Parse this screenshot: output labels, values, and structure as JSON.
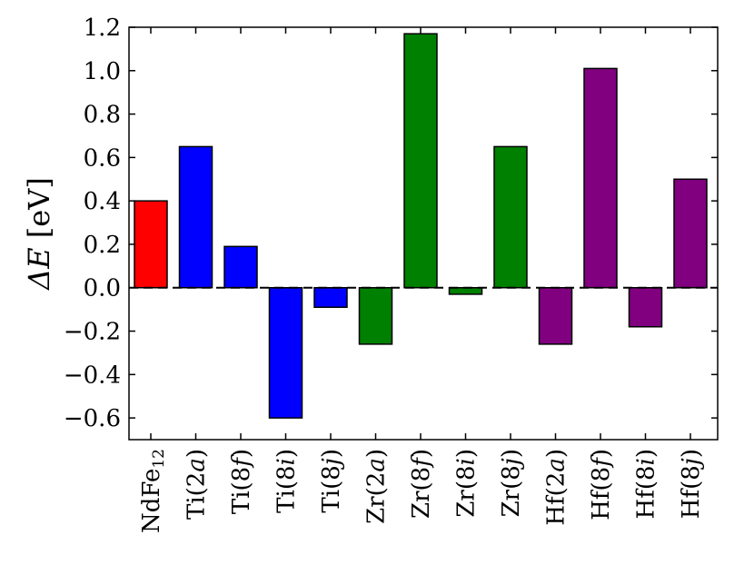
{
  "chart_data": {
    "type": "bar",
    "title": "",
    "xlabel": "",
    "ylabel": "ΔE [eV]",
    "ylabel_symbol": "ΔE",
    "ylabel_unit": "[eV]",
    "ylim": [
      -0.7,
      1.2
    ],
    "yticks": [
      "1.2",
      "1.0",
      "0.8",
      "0.6",
      "0.4",
      "0.2",
      "0.0",
      "-0.2",
      "-0.4",
      "-0.6"
    ],
    "ytick_values": [
      1.2,
      1.0,
      0.8,
      0.6,
      0.4,
      0.2,
      0.0,
      -0.2,
      -0.4,
      -0.6
    ],
    "grid": false,
    "zero_line": "dashed",
    "categories": [
      {
        "main": "NdFe",
        "sub": "12",
        "paren": "",
        "italic": ""
      },
      {
        "main": "Ti(",
        "italic": "a",
        "num": "2",
        "close": ")"
      },
      {
        "main": "Ti(",
        "italic": "f",
        "num": "8",
        "close": ")"
      },
      {
        "main": "Ti(",
        "italic": "i",
        "num": "8",
        "close": ")"
      },
      {
        "main": "Ti(",
        "italic": "j",
        "num": "8",
        "close": ")"
      },
      {
        "main": "Zr(",
        "italic": "a",
        "num": "2",
        "close": ")"
      },
      {
        "main": "Zr(",
        "italic": "f",
        "num": "8",
        "close": ")"
      },
      {
        "main": "Zr(",
        "italic": "i",
        "num": "8",
        "close": ")"
      },
      {
        "main": "Zr(",
        "italic": "j",
        "num": "8",
        "close": ")"
      },
      {
        "main": "Hf(",
        "italic": "a",
        "num": "2",
        "close": ")"
      },
      {
        "main": "Hf(",
        "italic": "f",
        "num": "8",
        "close": ")"
      },
      {
        "main": "Hf(",
        "italic": "i",
        "num": "8",
        "close": ")"
      },
      {
        "main": "Hf(",
        "italic": "j",
        "num": "8",
        "close": ")"
      }
    ],
    "values": [
      0.4,
      0.65,
      0.19,
      -0.6,
      -0.09,
      -0.26,
      1.17,
      -0.03,
      0.65,
      -0.26,
      1.01,
      -0.18,
      0.5
    ],
    "colors": [
      "#ff0000",
      "#0000ff",
      "#0000ff",
      "#0000ff",
      "#0000ff",
      "#008000",
      "#008000",
      "#008000",
      "#008000",
      "#800080",
      "#800080",
      "#800080",
      "#800080"
    ]
  }
}
